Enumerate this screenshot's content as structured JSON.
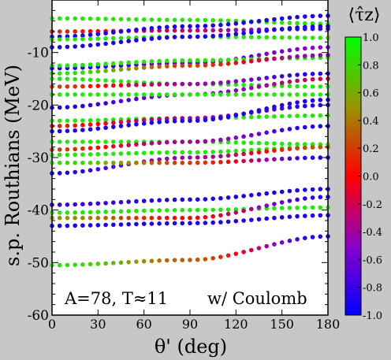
{
  "chart_data": {
    "type": "scatter",
    "xlabel": "θ' (deg)",
    "ylabel": "s.p. Routhians (MeV)",
    "xlim": [
      0,
      180
    ],
    "ylim": [
      -60,
      0
    ],
    "xticks": [
      0,
      30,
      60,
      90,
      120,
      150,
      180
    ],
    "yticks": [
      -60,
      -50,
      -40,
      -30,
      -20,
      -10
    ],
    "grid": false,
    "annotations": [
      "A=78, T≈11",
      "w/ Coulomb"
    ],
    "colorbar": {
      "label": "⟨τ̂z⟩",
      "range": [
        -1.0,
        1.0
      ],
      "ticks": [
        "1.0",
        "0.8",
        "0.6",
        "0.4",
        "0.2",
        "0.0",
        "-0.2",
        "-0.4",
        "-0.6",
        "-0.8",
        "-1.0"
      ]
    },
    "series": [
      {
        "x": [
          0,
          90,
          180
        ],
        "y": [
          -3.5,
          -3.8,
          -4.5
        ],
        "tz": [
          0.9,
          0.9,
          0.9
        ]
      },
      {
        "x": [
          0,
          90,
          180
        ],
        "y": [
          -6.0,
          -5.8,
          -5.5
        ],
        "tz": [
          0.1,
          -0.3,
          -0.8
        ]
      },
      {
        "x": [
          0,
          90,
          180
        ],
        "y": [
          -7.0,
          -5.0,
          -3.0
        ],
        "tz": [
          -0.9,
          -0.9,
          -0.9
        ]
      },
      {
        "x": [
          0,
          90,
          180
        ],
        "y": [
          -7.5,
          -7.0,
          -7.2
        ],
        "tz": [
          0.9,
          0.9,
          0.9
        ]
      },
      {
        "x": [
          0,
          90,
          180
        ],
        "y": [
          -9.0,
          -7.0,
          -5.0
        ],
        "tz": [
          -0.9,
          -0.9,
          -0.9
        ]
      },
      {
        "x": [
          0,
          90,
          180
        ],
        "y": [
          -13.0,
          -12.0,
          -9.0
        ],
        "tz": [
          -0.9,
          -0.7,
          -0.5
        ]
      },
      {
        "x": [
          0,
          90,
          180
        ],
        "y": [
          -12.5,
          -11.5,
          -11.0
        ],
        "tz": [
          0.9,
          0.9,
          0.9
        ]
      },
      {
        "x": [
          0,
          90,
          180
        ],
        "y": [
          -14.0,
          -12.5,
          -10.5
        ],
        "tz": [
          0.9,
          0.2,
          -0.5
        ]
      },
      {
        "x": [
          0,
          90,
          180
        ],
        "y": [
          -15.0,
          -16.0,
          -16.5
        ],
        "tz": [
          0.9,
          0.9,
          0.9
        ]
      },
      {
        "x": [
          0,
          90,
          180
        ],
        "y": [
          -16.5,
          -16.0,
          -14.0
        ],
        "tz": [
          0.2,
          -0.4,
          -0.9
        ]
      },
      {
        "x": [
          0,
          90,
          180
        ],
        "y": [
          -20.5,
          -18.0,
          -15.0
        ],
        "tz": [
          -0.9,
          -0.6,
          -0.2
        ]
      },
      {
        "x": [
          0,
          90,
          180
        ],
        "y": [
          -18.0,
          -18.0,
          -18.0
        ],
        "tz": [
          0.9,
          0.9,
          0.9
        ]
      },
      {
        "x": [
          0,
          90,
          180
        ],
        "y": [
          -23.0,
          -22.5,
          -22.0
        ],
        "tz": [
          0.9,
          0.9,
          0.9
        ]
      },
      {
        "x": [
          0,
          90,
          180
        ],
        "y": [
          -24.0,
          -22.5,
          -20.0
        ],
        "tz": [
          0.1,
          -0.4,
          -0.9
        ]
      },
      {
        "x": [
          0,
          90,
          180
        ],
        "y": [
          -25.0,
          -23.0,
          -19.0
        ],
        "tz": [
          -0.9,
          -0.9,
          -0.9
        ]
      },
      {
        "x": [
          0,
          90,
          180
        ],
        "y": [
          -27.0,
          -27.0,
          -27.5
        ],
        "tz": [
          0.9,
          0.9,
          0.9
        ]
      },
      {
        "x": [
          0,
          90,
          180
        ],
        "y": [
          -28.5,
          -27.0,
          -24.0
        ],
        "tz": [
          0.2,
          -0.4,
          -0.9
        ]
      },
      {
        "x": [
          0,
          90,
          180
        ],
        "y": [
          -29.5,
          -29.0,
          -28.0
        ],
        "tz": [
          0.9,
          0.9,
          0.9
        ]
      },
      {
        "x": [
          0,
          90,
          180
        ],
        "y": [
          -33.0,
          -30.0,
          -28.0
        ],
        "tz": [
          -0.9,
          -0.4,
          0.3
        ]
      },
      {
        "x": [
          0,
          90,
          180
        ],
        "y": [
          -31.0,
          -31.0,
          -30.0
        ],
        "tz": [
          0.9,
          0.2,
          -0.9
        ]
      },
      {
        "x": [
          0,
          90,
          180
        ],
        "y": [
          -39.0,
          -38.0,
          -36.0
        ],
        "tz": [
          -0.8,
          -0.9,
          -0.9
        ]
      },
      {
        "x": [
          0,
          90,
          180
        ],
        "y": [
          -40.5,
          -40.0,
          -39.5
        ],
        "tz": [
          0.9,
          0.9,
          0.9
        ]
      },
      {
        "x": [
          0,
          90,
          180
        ],
        "y": [
          -41.5,
          -41.5,
          -37.5
        ],
        "tz": [
          0.5,
          0.0,
          -0.9
        ]
      },
      {
        "x": [
          0,
          90,
          180
        ],
        "y": [
          -43.0,
          -42.5,
          -41.0
        ],
        "tz": [
          -0.9,
          -0.9,
          -0.9
        ]
      },
      {
        "x": [
          0,
          90,
          180
        ],
        "y": [
          -50.5,
          -49.5,
          -45.0
        ],
        "tz": [
          0.9,
          0.3,
          -0.9
        ]
      }
    ]
  }
}
